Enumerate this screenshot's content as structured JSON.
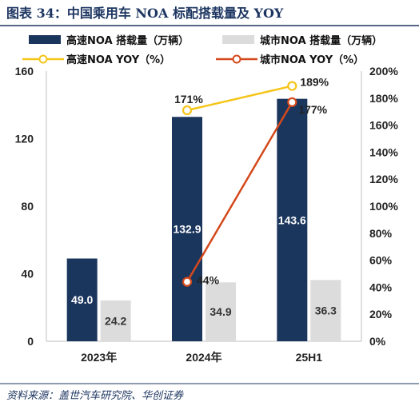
{
  "header": {
    "title": "图表 34：中国乘用车 NOA 标配搭载量及 YOY"
  },
  "footer": {
    "source": "资料来源：盖世汽车研究院、华创证券"
  },
  "colors": {
    "title": "#1d3661",
    "highway_bar": "#1b365d",
    "city_bar": "#dcdcdc",
    "highway_yoy_line": "#f5c518",
    "city_yoy_line": "#d4491c",
    "rule": "#1d3661"
  },
  "chart_data": {
    "type": "bar",
    "categories": [
      "2023年",
      "2024年",
      "25H1"
    ],
    "series": [
      {
        "name": "高速NOA 搭载量（万辆）",
        "kind": "bar",
        "axis": "left",
        "values": [
          49.0,
          132.9,
          143.6
        ],
        "labels": [
          "49.0",
          "132.9",
          "143.6"
        ]
      },
      {
        "name": "城市NOA 搭载量（万辆）",
        "kind": "bar",
        "axis": "left",
        "values": [
          24.2,
          34.9,
          36.3
        ],
        "labels": [
          "24.2",
          "34.9",
          "36.3"
        ]
      },
      {
        "name": "高速NOA YOY（%）",
        "kind": "line",
        "axis": "right",
        "values": [
          null,
          171,
          189
        ],
        "labels": [
          "",
          "171%",
          "189%"
        ]
      },
      {
        "name": "城市NOA YOY（%）",
        "kind": "line",
        "axis": "right",
        "values": [
          null,
          44,
          177
        ],
        "labels": [
          "",
          "44%",
          "177%"
        ]
      }
    ],
    "y_left": {
      "range": [
        0,
        160
      ],
      "ticks": [
        "0",
        "40",
        "80",
        "120",
        "160"
      ],
      "values": [
        0,
        40,
        80,
        120,
        160
      ]
    },
    "y_right": {
      "range": [
        0,
        200
      ],
      "ticks": [
        "0%",
        "20%",
        "40%",
        "60%",
        "80%",
        "100%",
        "120%",
        "140%",
        "160%",
        "180%",
        "200%"
      ],
      "values": [
        0,
        20,
        40,
        60,
        80,
        100,
        120,
        140,
        160,
        180,
        200
      ]
    },
    "grid": false,
    "legend": "top"
  }
}
